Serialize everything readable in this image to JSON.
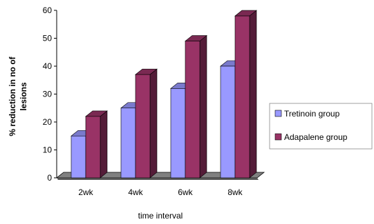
{
  "chart_data": {
    "type": "bar",
    "style": "3d-clustered-column",
    "categories": [
      "2wk",
      "4wk",
      "6wk",
      "8wk"
    ],
    "series": [
      {
        "name": "Tretinoin group",
        "values": [
          15,
          25,
          32,
          40
        ],
        "color": "#9999ff"
      },
      {
        "name": "Adapalene group",
        "values": [
          22,
          37,
          49,
          58
        ],
        "color": "#993366"
      }
    ],
    "xlabel": "time interval",
    "ylabel": "% reduction in no of lesions",
    "ylim": [
      0,
      60
    ],
    "yticks": [
      0,
      10,
      20,
      30,
      40,
      50,
      60
    ],
    "grid": false,
    "legend_position": "right",
    "floor_color": "#808080"
  }
}
